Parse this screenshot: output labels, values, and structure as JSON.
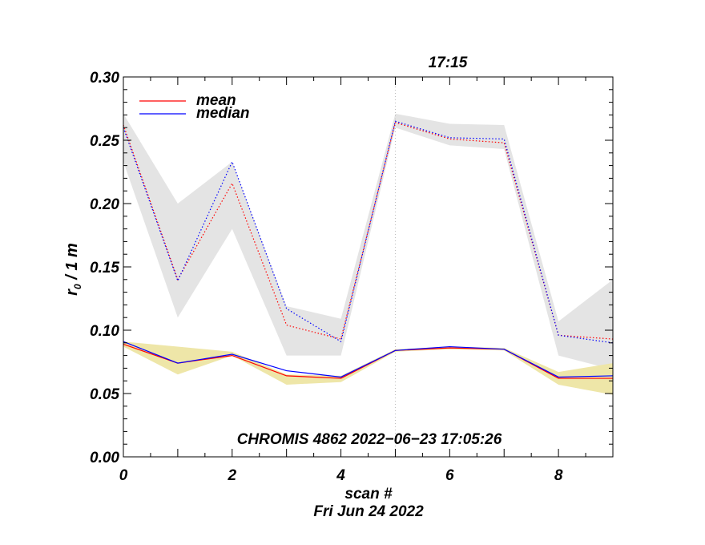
{
  "chart_data": {
    "type": "line",
    "xlabel": "scan #",
    "date_label": "Fri Jun 24 2022",
    "ylabel_main": "r",
    "ylabel_sub": "0",
    "ylabel_rest": " / 1 m",
    "top_label": "17:15",
    "marker_x": 5,
    "annotation": "CHROMIS 4862 2022−06−23 17:05:26",
    "xlim": [
      0,
      9
    ],
    "ylim": [
      0,
      0.3
    ],
    "x_ticks": [
      0,
      2,
      4,
      6,
      8
    ],
    "x_tick_labels": [
      "0",
      "2",
      "4",
      "6",
      "8"
    ],
    "y_ticks": [
      0.0,
      0.05,
      0.1,
      0.15,
      0.2,
      0.25,
      0.3
    ],
    "y_tick_labels": [
      "0.00",
      "0.05",
      "0.10",
      "0.15",
      "0.20",
      "0.25",
      "0.30"
    ],
    "x": [
      0,
      1,
      2,
      3,
      4,
      5,
      6,
      7,
      8,
      9
    ],
    "series": [
      {
        "name": "mean",
        "group": "upper",
        "color": "#ff0000",
        "style": "dotted",
        "values": [
          0.262,
          0.14,
          0.216,
          0.104,
          0.093,
          0.264,
          0.251,
          0.248,
          0.096,
          0.093
        ]
      },
      {
        "name": "median",
        "group": "upper",
        "color": "#0000ff",
        "style": "dotted",
        "values": [
          0.26,
          0.139,
          0.233,
          0.117,
          0.091,
          0.265,
          0.252,
          0.251,
          0.096,
          0.09
        ]
      },
      {
        "name": "mean",
        "group": "lower",
        "color": "#ff0000",
        "style": "solid",
        "values": [
          0.089,
          0.074,
          0.08,
          0.064,
          0.062,
          0.084,
          0.086,
          0.085,
          0.062,
          0.062
        ]
      },
      {
        "name": "median",
        "group": "lower",
        "color": "#0000ff",
        "style": "solid",
        "values": [
          0.091,
          0.074,
          0.081,
          0.068,
          0.063,
          0.084,
          0.087,
          0.085,
          0.063,
          0.064
        ]
      }
    ],
    "bands": [
      {
        "name": "upper-range",
        "color": "#e4e4e4",
        "upper": [
          0.271,
          0.2,
          0.233,
          0.119,
          0.109,
          0.271,
          0.263,
          0.262,
          0.107,
          0.14
        ],
        "lower": [
          0.233,
          0.11,
          0.18,
          0.08,
          0.08,
          0.26,
          0.246,
          0.243,
          0.08,
          0.069
        ]
      },
      {
        "name": "lower-range",
        "color": "#eee6a8",
        "upper": [
          0.091,
          0.087,
          0.083,
          0.065,
          0.064,
          0.085,
          0.087,
          0.086,
          0.067,
          0.074
        ],
        "lower": [
          0.087,
          0.065,
          0.08,
          0.057,
          0.059,
          0.083,
          0.085,
          0.084,
          0.057,
          0.049
        ]
      }
    ],
    "legend": [
      {
        "label": "mean",
        "color": "#ff0000"
      },
      {
        "label": "median",
        "color": "#0000ff"
      }
    ],
    "legend_position": "top-left"
  }
}
